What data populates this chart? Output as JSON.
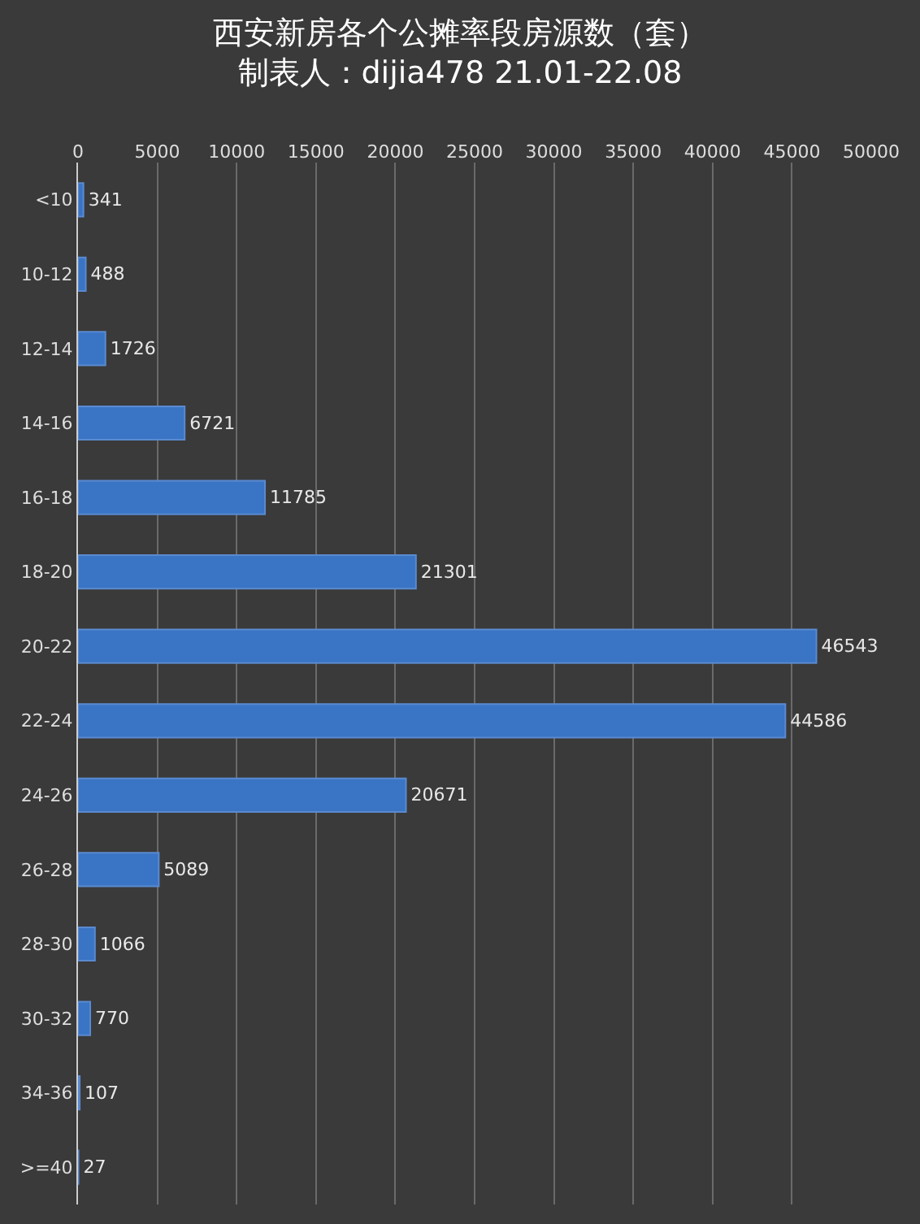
{
  "chart_data": {
    "type": "bar",
    "orientation": "horizontal",
    "title": "西安新房各个公摊率段房源数（套）",
    "subtitle": "制表人：dijia478 21.01-22.08",
    "categories": [
      "<10",
      "10-12",
      "12-14",
      "14-16",
      "16-18",
      "18-20",
      "20-22",
      "22-24",
      "24-26",
      "26-28",
      "28-30",
      "30-32",
      "34-36",
      ">=40"
    ],
    "values": [
      341,
      488,
      1726,
      6721,
      11785,
      21301,
      46543,
      44586,
      20671,
      5089,
      1066,
      770,
      107,
      27
    ],
    "color": "#3a74c4",
    "xlim": [
      0,
      50000
    ],
    "xticks": [
      0,
      5000,
      10000,
      15000,
      20000,
      25000,
      30000,
      35000,
      40000,
      45000,
      50000
    ],
    "grid": "x",
    "data_labels": true,
    "legend": false
  }
}
